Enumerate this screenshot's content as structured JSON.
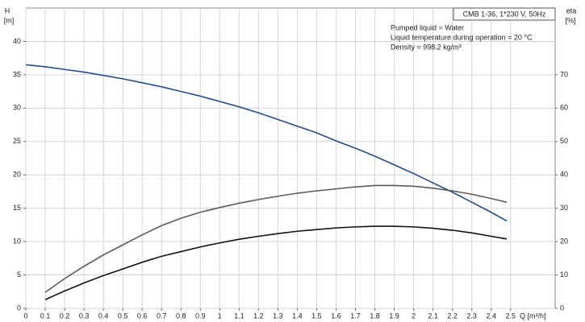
{
  "chart_data": {
    "type": "line",
    "title": "CMB 1-36, 1*230 V, 50Hz",
    "notes": [
      "Pumped liquid = Water",
      "Liquid temperature during operation = 20 °C",
      "Density = 998.2 kg/m³"
    ],
    "x_label": "Q [m³/h]",
    "y_label": [
      "H",
      "[m]"
    ],
    "y2_label": [
      "eta",
      "[%]"
    ],
    "x": [
      0,
      0.1,
      0.2,
      0.3,
      0.4,
      0.5,
      0.6,
      0.7,
      0.8,
      0.9,
      1.0,
      1.1,
      1.2,
      1.3,
      1.4,
      1.5,
      1.6,
      1.7,
      1.8,
      1.9,
      2.0,
      2.1,
      2.2,
      2.3,
      2.4,
      2.48
    ],
    "series": [
      {
        "color": "#1f4e8c",
        "values": [
          36.5,
          36.2,
          35.8,
          35.4,
          34.9,
          34.4,
          33.8,
          33.2,
          32.5,
          31.8,
          31.0,
          30.2,
          29.3,
          28.3,
          27.3,
          26.3,
          25.1,
          24.0,
          22.8,
          21.5,
          20.2,
          18.8,
          17.4,
          15.9,
          14.4,
          13.1
        ]
      },
      {
        "color": "#5a5a5a",
        "axis": "y2",
        "values": [
          null,
          4.8,
          8.9,
          12.6,
          16.0,
          19.0,
          22.0,
          24.8,
          27.0,
          28.8,
          30.2,
          31.5,
          32.6,
          33.6,
          34.5,
          35.2,
          35.8,
          36.4,
          36.8,
          36.8,
          36.6,
          36.0,
          35.2,
          34.2,
          32.9,
          31.8
        ]
      },
      {
        "color": "#111111",
        "axis": "y2",
        "values": [
          null,
          2.6,
          5.2,
          7.6,
          9.8,
          11.8,
          13.8,
          15.6,
          17.0,
          18.4,
          19.6,
          20.7,
          21.6,
          22.4,
          23.1,
          23.6,
          24.1,
          24.4,
          24.6,
          24.6,
          24.4,
          24.0,
          23.4,
          22.6,
          21.6,
          20.8
        ]
      }
    ],
    "xlim": [
      0,
      2.73
    ],
    "xticks": [
      0,
      0.1,
      0.2,
      0.3,
      0.4,
      0.5,
      0.6,
      0.7,
      0.8,
      0.9,
      1.0,
      1.1,
      1.2,
      1.3,
      1.4,
      1.5,
      1.6,
      1.7,
      1.8,
      1.9,
      2.0,
      2.1,
      2.2,
      2.3,
      2.4,
      2.5
    ],
    "ylim": [
      0,
      45
    ],
    "yticks": [
      0,
      5,
      10,
      15,
      20,
      25,
      30,
      35,
      40
    ],
    "y2lim": [
      0,
      90
    ],
    "y2ticks": [
      0,
      10,
      20,
      30,
      40,
      50,
      60,
      70
    ],
    "grid": true
  }
}
